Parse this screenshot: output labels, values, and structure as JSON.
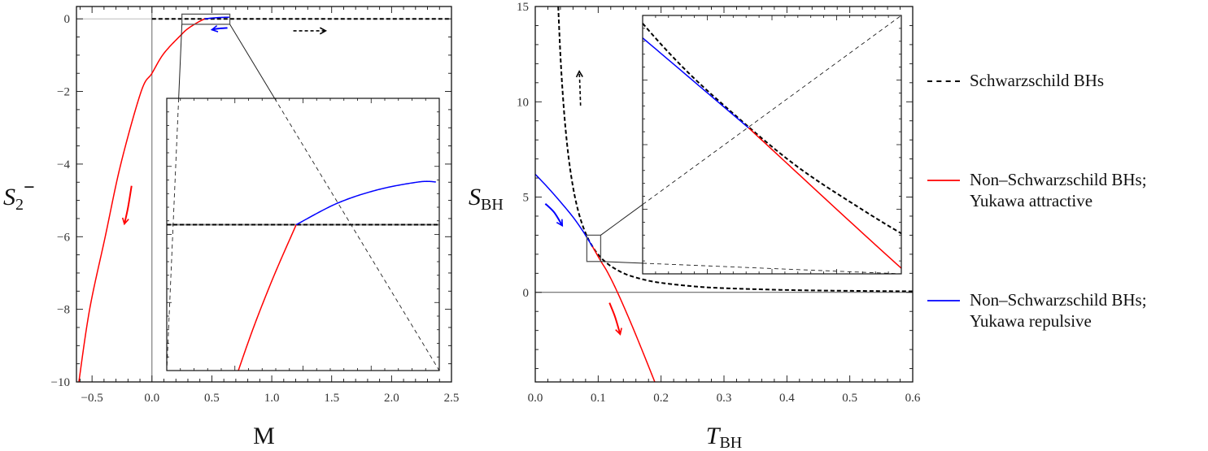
{
  "chart_data": [
    {
      "type": "line",
      "xlabel": "M",
      "ylabel": {
        "base": "S",
        "sub": "2",
        "sup": "−"
      },
      "xlim": [
        -0.63,
        2.5
      ],
      "ylim": [
        -10,
        0.34
      ],
      "x_ticks": [
        "−0.5",
        "0.0",
        "0.5",
        "1.0",
        "1.5",
        "2.0",
        "2.5"
      ],
      "x_tick_values": [
        -0.5,
        0,
        0.5,
        1,
        1.5,
        2,
        2.5
      ],
      "y_ticks": [
        "0",
        "−2",
        "−4",
        "−6",
        "−8",
        "−10"
      ],
      "y_tick_values": [
        0,
        -2,
        -4,
        -6,
        -8,
        -10
      ],
      "grid": false,
      "inset": {
        "xlim": [
          0.25,
          0.65
        ],
        "ylim": [
          -0.15,
          0.13
        ]
      },
      "series": [
        {
          "name": "Schwarzschild BHs",
          "color": "#000000",
          "style": "dashed",
          "points": [
            [
              0,
              0
            ],
            [
              2.5,
              0
            ]
          ]
        },
        {
          "name": "Non-Schwarzschild BHs; Yukawa attractive",
          "color": "#ff0000",
          "style": "solid",
          "points": [
            [
              -0.61,
              -10
            ],
            [
              -0.52,
              -8
            ],
            [
              -0.39,
              -6
            ],
            [
              -0.26,
              -4
            ],
            [
              -0.09,
              -2
            ],
            [
              0,
              -1.5
            ],
            [
              0.1,
              -0.95
            ],
            [
              0.25,
              -0.42
            ],
            [
              0.3,
              -0.27
            ],
            [
              0.36,
              -0.14
            ],
            [
              0.4,
              -0.065
            ],
            [
              0.44,
              0
            ]
          ]
        },
        {
          "name": "Non-Schwarzschild BHs; Yukawa repulsive",
          "color": "#0000ff",
          "style": "solid",
          "points": [
            [
              0.44,
              0
            ],
            [
              0.5,
              0.022
            ],
            [
              0.56,
              0.036
            ],
            [
              0.62,
              0.044
            ],
            [
              0.645,
              0.044
            ]
          ]
        }
      ]
    },
    {
      "type": "line",
      "xlabel": {
        "base": "T",
        "sub": "BH"
      },
      "ylabel": {
        "base": "S",
        "sub": "BH"
      },
      "xlim": [
        0,
        0.6
      ],
      "ylim": [
        -4.7,
        15
      ],
      "x_ticks": [
        "0.0",
        "0.1",
        "0.2",
        "0.3",
        "0.4",
        "0.5",
        "0.6"
      ],
      "x_tick_values": [
        0,
        0.1,
        0.2,
        0.3,
        0.4,
        0.5,
        0.6
      ],
      "y_ticks": [
        "0",
        "5",
        "10",
        "15"
      ],
      "y_tick_values": [
        0,
        5,
        10,
        15
      ],
      "grid": false,
      "inset": {
        "xlim": [
          0.082,
          0.104
        ],
        "ylim": [
          1.62,
          3.0
        ]
      },
      "series": [
        {
          "name": "Schwarzschild BHs",
          "color": "#000000",
          "style": "dashed",
          "points": [
            [
              0.0355,
              15.8
            ],
            [
              0.04,
              12.43
            ],
            [
              0.045,
              9.82
            ],
            [
              0.05,
              7.96
            ],
            [
              0.055,
              6.58
            ],
            [
              0.06,
              5.53
            ],
            [
              0.065,
              4.71
            ],
            [
              0.07,
              4.06
            ],
            [
              0.075,
              3.54
            ],
            [
              0.08,
              3.11
            ],
            [
              0.085,
              2.75
            ],
            [
              0.09,
              2.46
            ],
            [
              0.095,
              2.2
            ],
            [
              0.1,
              1.99
            ],
            [
              0.105,
              1.8
            ],
            [
              0.11,
              1.64
            ],
            [
              0.12,
              1.38
            ],
            [
              0.135,
              1.09
            ],
            [
              0.15,
              0.88
            ],
            [
              0.175,
              0.65
            ],
            [
              0.2,
              0.5
            ],
            [
              0.25,
              0.32
            ],
            [
              0.3,
              0.22
            ],
            [
              0.4,
              0.124
            ],
            [
              0.5,
              0.08
            ],
            [
              0.6,
              0.055
            ]
          ]
        },
        {
          "name": "Non-Schwarzschild BHs; Yukawa attractive",
          "color": "#ff0000",
          "style": "solid",
          "points": [
            [
              0.091,
              2.4
            ],
            [
              0.104,
              1.65
            ],
            [
              0.115,
              1.05
            ],
            [
              0.13,
              0.05
            ],
            [
              0.15,
              -1.45
            ],
            [
              0.17,
              -3.05
            ],
            [
              0.19,
              -4.7
            ]
          ]
        },
        {
          "name": "Non-Schwarzschild BHs; Yukawa repulsive",
          "color": "#0000ff",
          "style": "solid",
          "points": [
            [
              0,
              6.2
            ],
            [
              0.02,
              5.5
            ],
            [
              0.04,
              4.75
            ],
            [
              0.06,
              3.95
            ],
            [
              0.075,
              3.25
            ],
            [
              0.082,
              2.88
            ],
            [
              0.091,
              2.4
            ]
          ]
        }
      ]
    }
  ],
  "legend": {
    "placement": "right",
    "items": [
      {
        "label": "Schwarzschild BHs",
        "color": "#000000",
        "style": "dashed"
      },
      {
        "label": "Non–Schwarzschild BHs;\nYukawa attractive",
        "color": "#ff0000",
        "style": "solid"
      },
      {
        "label": "Non–Schwarzschild BHs;\nYukawa repulsive",
        "color": "#0000ff",
        "style": "solid"
      }
    ]
  }
}
